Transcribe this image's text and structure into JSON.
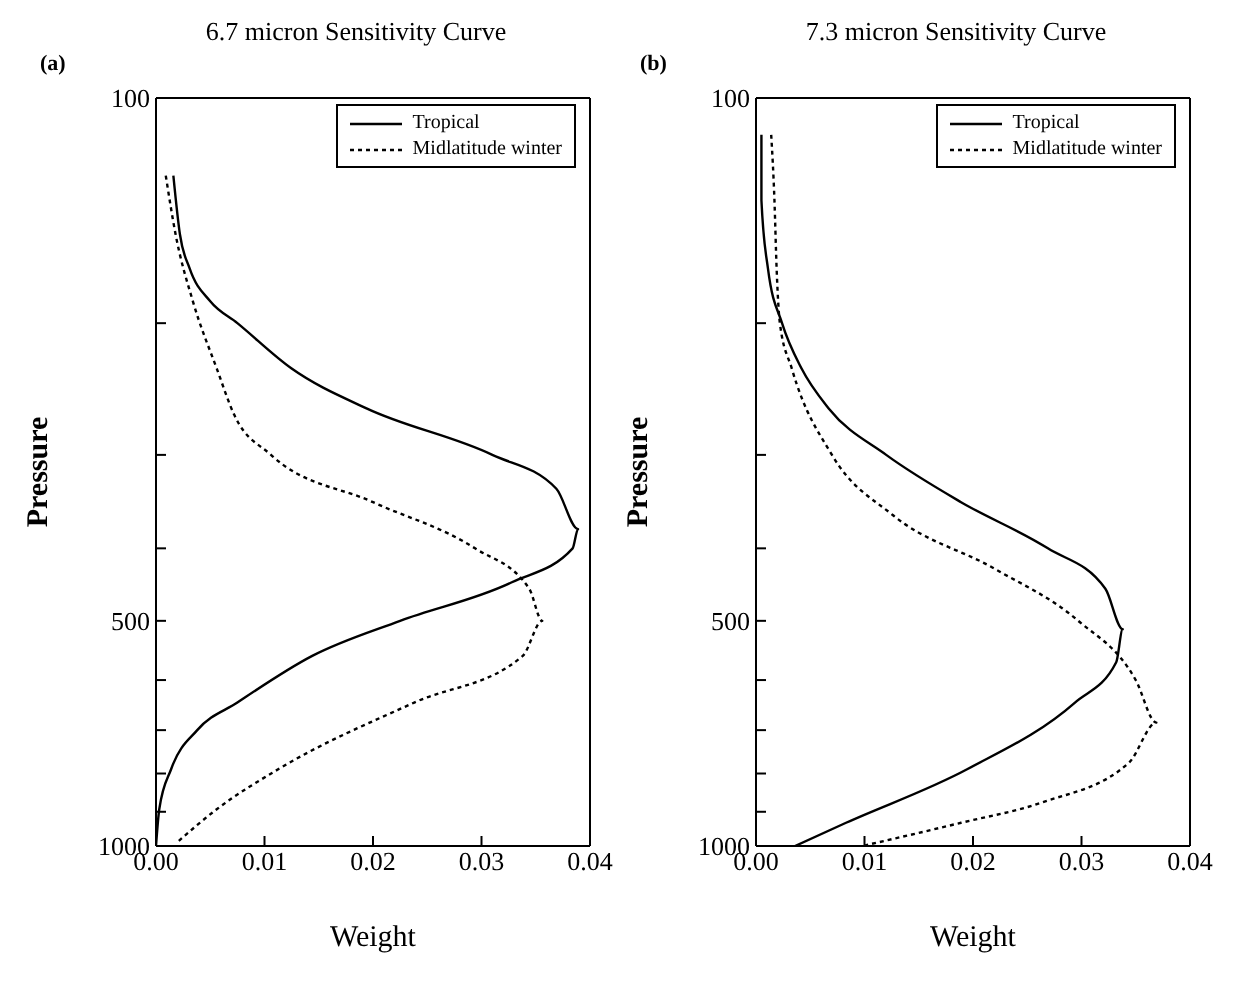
{
  "chart_data": [
    {
      "type": "line",
      "title": "6.7 micron Sensitivity Curve",
      "annotations": [
        "(a)"
      ],
      "xlabel": "Weight",
      "ylabel": "Pressure",
      "xlim": [
        0,
        0.04
      ],
      "xticks": [
        {
          "value": 0,
          "label": "0.00"
        },
        {
          "value": 0.01,
          "label": "0.01"
        },
        {
          "value": 0.02,
          "label": "0.02"
        },
        {
          "value": 0.03,
          "label": "0.03"
        },
        {
          "value": 0.04,
          "label": "0.04"
        }
      ],
      "ylim": [
        1000,
        100
      ],
      "log": "y",
      "yticks": [
        100,
        {
          "value": 200,
          "label": null
        },
        {
          "value": 300,
          "label": null
        },
        {
          "value": 400,
          "label": null
        },
        500,
        {
          "value": 600,
          "label": null
        },
        {
          "value": 700,
          "label": null
        },
        {
          "value": 800,
          "label": null
        },
        {
          "value": 900,
          "label": null
        },
        1000
      ],
      "legend": "top right",
      "series": [
        {
          "name": "Tropical",
          "color": "#000000",
          "line_style": "solid",
          "x": [
            0.0016,
            0.0022,
            0.0031,
            0.005,
            0.0075,
            0.0125,
            0.0194,
            0.031,
            0.0369,
            0.0389,
            0.0384,
            0.0328,
            0.0225,
            0.0144,
            0.0075,
            0.0038,
            0.0014,
            0.0003,
            0.0
          ],
          "values": [
            127,
            152,
            169,
            187,
            200,
            230,
            260,
            300,
            333,
            377,
            400,
            444,
            500,
            557,
            643,
            700,
            789,
            893,
            1000
          ]
        },
        {
          "name": "Midlatitude winter",
          "color": "#000000",
          "line_style": "dotted",
          "x": [
            0.0009,
            0.0018,
            0.0034,
            0.0056,
            0.0072,
            0.0106,
            0.02,
            0.0294,
            0.0344,
            0.0356,
            0.0338,
            0.0238,
            0.0113,
            0.0056,
            0.0019
          ],
          "values": [
            127,
            152,
            187,
            230,
            265,
            300,
            347,
            400,
            453,
            500,
            557,
            643,
            789,
            893,
            990
          ]
        }
      ]
    },
    {
      "type": "line",
      "title": "7.3 micron Sensitivity Curve",
      "annotations": [
        "(b)"
      ],
      "xlabel": "Weight",
      "ylabel": "Pressure",
      "xlim": [
        0,
        0.04
      ],
      "xticks": [
        {
          "value": 0,
          "label": "0.00"
        },
        {
          "value": 0.01,
          "label": "0.01"
        },
        {
          "value": 0.02,
          "label": "0.02"
        },
        {
          "value": 0.03,
          "label": "0.03"
        },
        {
          "value": 0.04,
          "label": "0.04"
        }
      ],
      "ylim": [
        1000,
        100
      ],
      "log": "y",
      "yticks": [
        100,
        {
          "value": 200,
          "label": null
        },
        {
          "value": 300,
          "label": null
        },
        {
          "value": 400,
          "label": null
        },
        500,
        {
          "value": 600,
          "label": null
        },
        {
          "value": 700,
          "label": null
        },
        {
          "value": 800,
          "label": null
        },
        {
          "value": 900,
          "label": null
        },
        1000
      ],
      "legend": "top right",
      "series": [
        {
          "name": "Tropical",
          "color": "#000000",
          "line_style": "solid",
          "x": [
            0.0005,
            0.0005,
            0.0011,
            0.0024,
            0.0042,
            0.0067,
            0.012,
            0.0189,
            0.0269,
            0.0322,
            0.0338,
            0.0332,
            0.0294,
            0.0195,
            0.0083,
            0.0036
          ],
          "values": [
            112,
            137,
            169,
            200,
            230,
            260,
            300,
            347,
            400,
            453,
            513,
            568,
            643,
            789,
            931,
            1000
          ]
        },
        {
          "name": "Midlatitude winter",
          "color": "#000000",
          "line_style": "dotted",
          "x": [
            0.0014,
            0.0017,
            0.0019,
            0.0022,
            0.0033,
            0.007,
            0.0126,
            0.022,
            0.0297,
            0.035,
            0.0369,
            0.0344,
            0.0263,
            0.0189,
            0.0098
          ],
          "values": [
            112,
            137,
            169,
            200,
            230,
            300,
            361,
            426,
            500,
            600,
            684,
            773,
            875,
            931,
            1000
          ]
        }
      ]
    }
  ]
}
